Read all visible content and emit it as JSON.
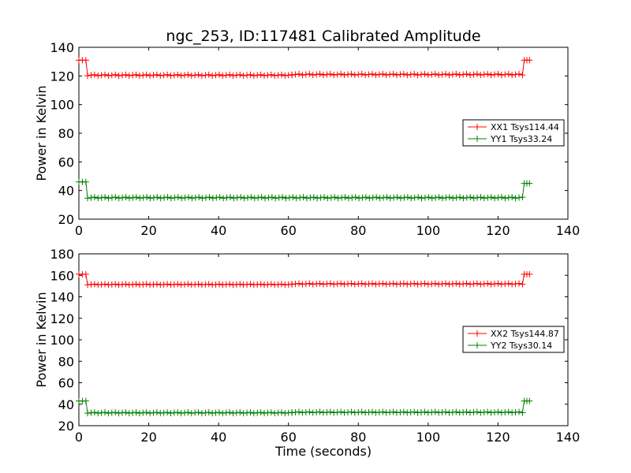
{
  "figure": {
    "title": "ngc_253, ID:117481 Calibrated Amplitude",
    "xlabel": "Time (seconds)"
  },
  "colors": {
    "xx": "#ff0000",
    "yy": "#008000",
    "axes": "#000000"
  },
  "chart_data": [
    {
      "type": "line",
      "title": "ngc_253, ID:117481 Calibrated Amplitude",
      "xlabel": "",
      "ylabel": "Power in Kelvin",
      "xlim": [
        0,
        140
      ],
      "ylim": [
        20,
        140
      ],
      "xticks": [
        0,
        20,
        40,
        60,
        80,
        100,
        120,
        140
      ],
      "yticks": [
        20,
        40,
        60,
        80,
        100,
        120,
        140
      ],
      "grid": false,
      "legend_position": "right",
      "marker": "plus",
      "series": [
        {
          "name": "XX1 Tsys114.44",
          "color": "#ff0000",
          "segments": [
            {
              "x_start": 0,
              "x_end": 2,
              "value": 131
            },
            {
              "x_start": 2.5,
              "x_end": 61,
              "value": 120.5
            },
            {
              "x_start": 61,
              "x_end": 127,
              "value": 121
            },
            {
              "x_start": 127.5,
              "x_end": 129,
              "value": 131
            }
          ]
        },
        {
          "name": "YY1 Tsys33.24",
          "color": "#008000",
          "segments": [
            {
              "x_start": 0,
              "x_end": 2,
              "value": 46
            },
            {
              "x_start": 2.5,
              "x_end": 127,
              "value": 35
            },
            {
              "x_start": 127.5,
              "x_end": 129,
              "value": 45
            }
          ]
        }
      ]
    },
    {
      "type": "line",
      "title": "",
      "xlabel": "Time (seconds)",
      "ylabel": "Power in Kelvin",
      "xlim": [
        0,
        140
      ],
      "ylim": [
        20,
        180
      ],
      "xticks": [
        0,
        20,
        40,
        60,
        80,
        100,
        120,
        140
      ],
      "yticks": [
        20,
        40,
        60,
        80,
        100,
        120,
        140,
        160,
        180
      ],
      "grid": false,
      "legend_position": "right",
      "marker": "plus",
      "series": [
        {
          "name": "XX2 Tsys144.87",
          "color": "#ff0000",
          "segments": [
            {
              "x_start": 0,
              "x_end": 2,
              "value": 161
            },
            {
              "x_start": 2.5,
              "x_end": 61,
              "value": 151.5
            },
            {
              "x_start": 61,
              "x_end": 127,
              "value": 152
            },
            {
              "x_start": 127.5,
              "x_end": 129,
              "value": 161
            }
          ]
        },
        {
          "name": "YY2 Tsys30.14",
          "color": "#008000",
          "segments": [
            {
              "x_start": 0,
              "x_end": 2,
              "value": 43
            },
            {
              "x_start": 2.5,
              "x_end": 61,
              "value": 32
            },
            {
              "x_start": 61,
              "x_end": 127,
              "value": 32.5
            },
            {
              "x_start": 127.5,
              "x_end": 129,
              "value": 43
            }
          ]
        }
      ]
    }
  ]
}
